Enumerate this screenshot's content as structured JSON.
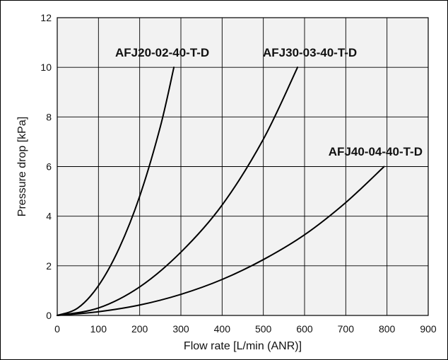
{
  "chart_data": {
    "type": "line",
    "title": "",
    "xlabel": "Flow rate [L/min (ANR)]",
    "ylabel": "Pressure drop [kPa]",
    "xlim": [
      0,
      900
    ],
    "ylim": [
      0,
      12
    ],
    "xticks": [
      0,
      100,
      200,
      300,
      400,
      500,
      600,
      700,
      800,
      900
    ],
    "yticks": [
      0,
      2,
      4,
      6,
      8,
      10,
      12
    ],
    "grid": true,
    "background_color": "#f2f2f2",
    "line_color": "#000000",
    "series": [
      {
        "name": "AFJ20-02-40-T-D",
        "x": [
          0,
          50,
          100,
          150,
          200,
          250,
          283
        ],
        "y": [
          0,
          0.3,
          1.2,
          2.7,
          4.8,
          7.6,
          10.0
        ]
      },
      {
        "name": "AFJ30-03-40-T-D",
        "x": [
          0,
          100,
          200,
          300,
          400,
          500,
          583
        ],
        "y": [
          0,
          0.3,
          1.15,
          2.55,
          4.45,
          7.1,
          10.0
        ]
      },
      {
        "name": "AFJ40-04-40-T-D",
        "x": [
          0,
          100,
          200,
          300,
          400,
          500,
          600,
          700,
          793
        ],
        "y": [
          0,
          0.15,
          0.42,
          0.85,
          1.45,
          2.25,
          3.25,
          4.55,
          6.0
        ]
      }
    ]
  }
}
